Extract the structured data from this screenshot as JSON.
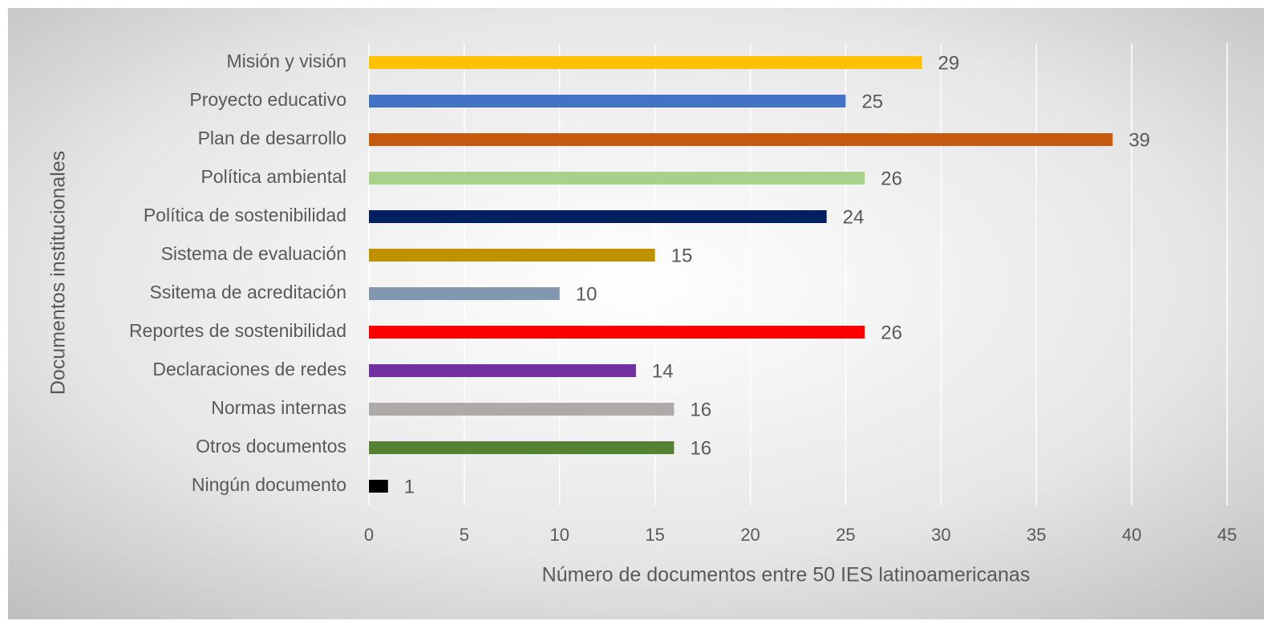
{
  "chart_data": {
    "type": "bar",
    "orientation": "horizontal",
    "categories": [
      "Misión y visión",
      "Proyecto educativo",
      "Plan de desarrollo",
      "Política ambiental",
      "Política de sostenibilidad",
      "Sistema de evaluación",
      "Ssitema de acreditación",
      "Reportes de sostenibilidad",
      "Declaraciones de redes",
      "Normas internas",
      "Otros documentos",
      "Ningún documento"
    ],
    "values": [
      29,
      25,
      39,
      26,
      24,
      15,
      10,
      26,
      14,
      16,
      16,
      1
    ],
    "colors": [
      "#ffc000",
      "#4472c4",
      "#c55a11",
      "#a9d18e",
      "#002060",
      "#bf9000",
      "#8497b0",
      "#ff0000",
      "#7030a0",
      "#aeaaaa",
      "#548235",
      "#000000"
    ],
    "x_label": "Número de documentos entre 50 IES latinoamericanas",
    "y_label": "Documentos institucionales",
    "xlim": [
      0,
      45
    ],
    "xticks": [
      0,
      5,
      10,
      15,
      20,
      25,
      30,
      35,
      40,
      45
    ],
    "grid": true
  }
}
